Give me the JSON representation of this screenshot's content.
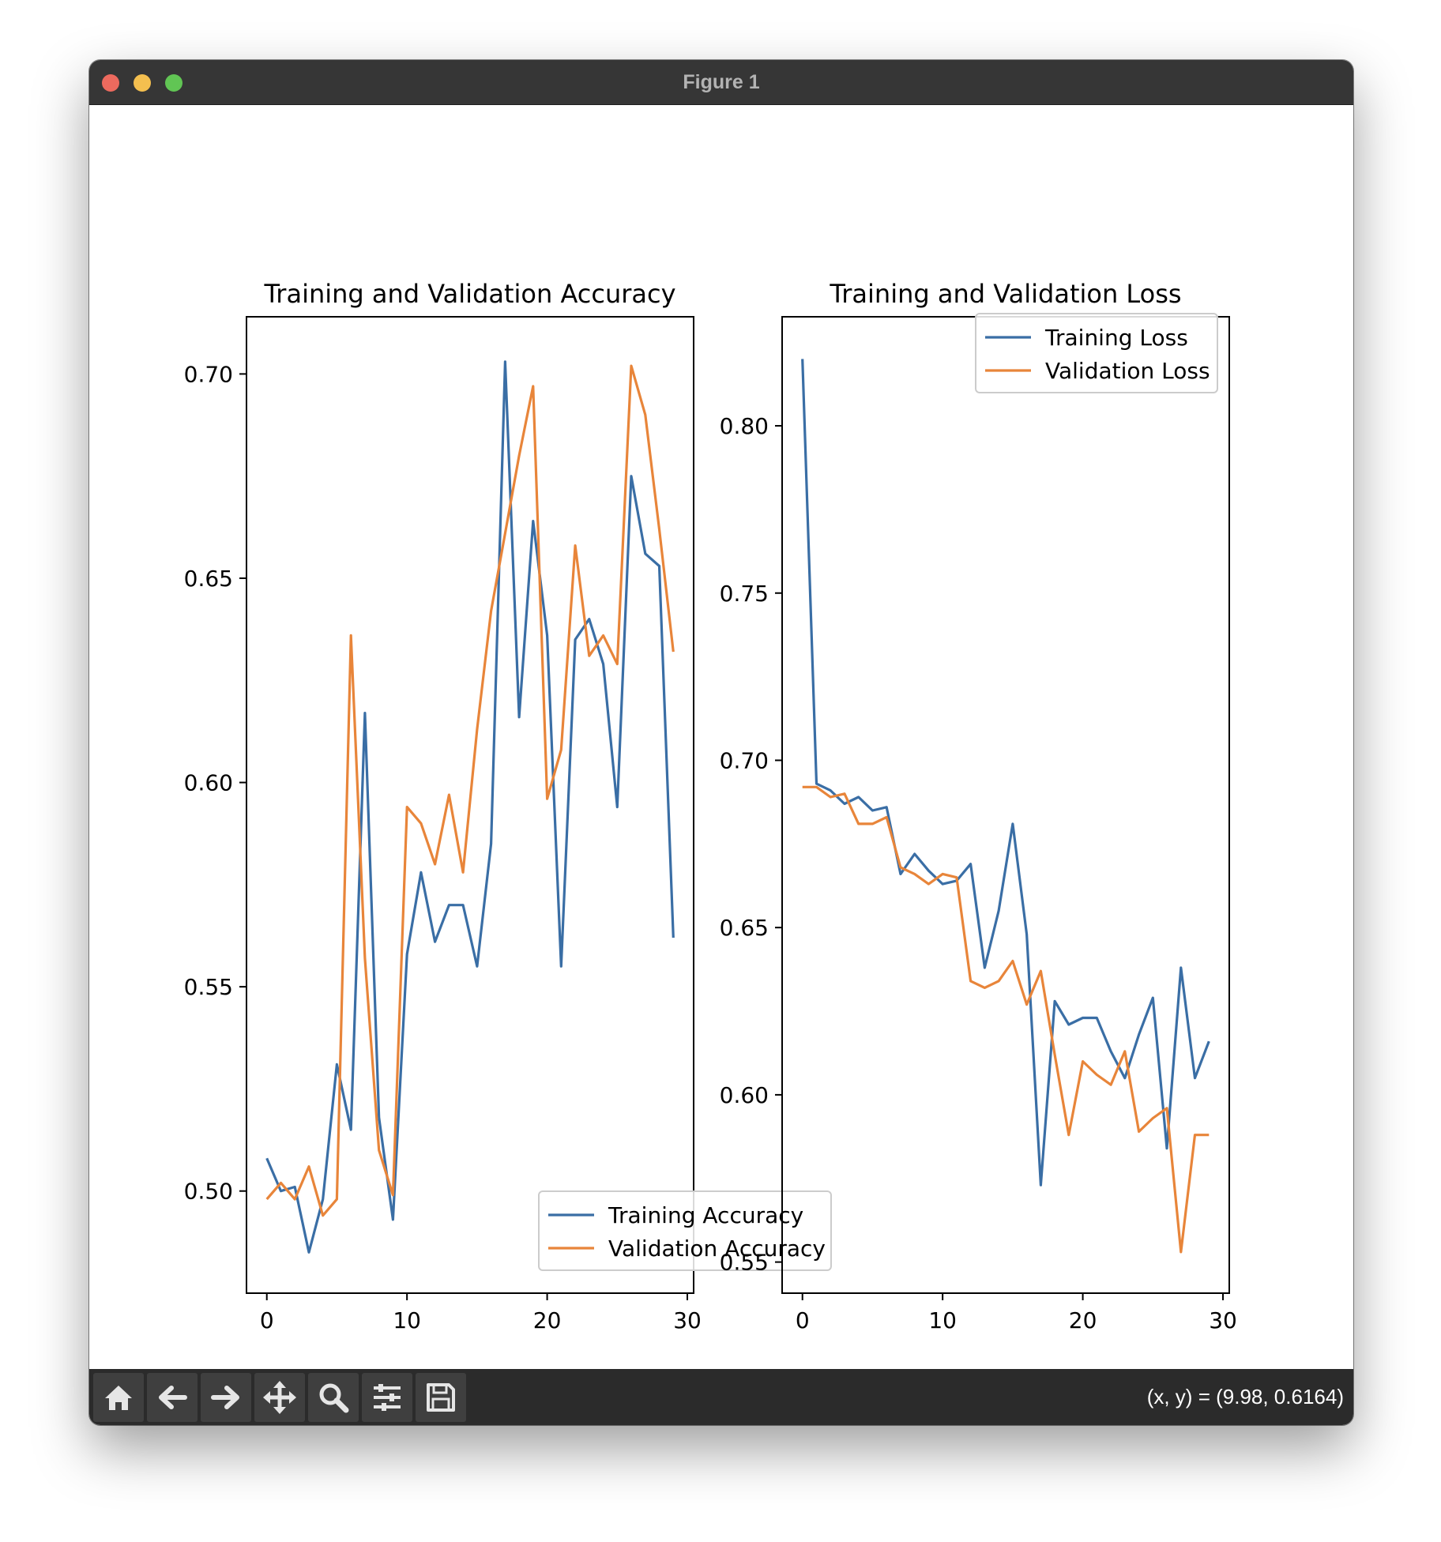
{
  "window": {
    "title": "Figure 1"
  },
  "toolbar": {
    "buttons": [
      {
        "name": "home",
        "icon": "home-icon"
      },
      {
        "name": "back",
        "icon": "arrow-left-icon"
      },
      {
        "name": "forward",
        "icon": "arrow-right-icon"
      },
      {
        "name": "pan",
        "icon": "move-icon"
      },
      {
        "name": "zoom",
        "icon": "magnifier-icon"
      },
      {
        "name": "configure-subplots",
        "icon": "sliders-icon"
      },
      {
        "name": "save",
        "icon": "floppy-disk-icon"
      }
    ],
    "coords": "(x, y) = (9.98, 0.6164)"
  },
  "colors": {
    "training": "#3a6ea5",
    "validation": "#e8853a"
  },
  "chart_data": [
    {
      "type": "line",
      "title": "Training and Validation Accuracy",
      "xlabel": "",
      "ylabel": "",
      "xlim": [
        -1.45,
        30.45
      ],
      "ylim": [
        0.475,
        0.714
      ],
      "xticks": [
        0,
        10,
        20,
        30
      ],
      "xtick_labels": [
        "0",
        "10",
        "20",
        "30"
      ],
      "yticks": [
        0.5,
        0.55,
        0.6,
        0.65,
        0.7
      ],
      "ytick_labels": [
        "0.50",
        "0.55",
        "0.60",
        "0.65",
        "0.70"
      ],
      "legend": "lower-right",
      "grid": false,
      "x": [
        0,
        1,
        2,
        3,
        4,
        5,
        6,
        7,
        8,
        9,
        10,
        11,
        12,
        13,
        14,
        15,
        16,
        17,
        18,
        19,
        20,
        21,
        22,
        23,
        24,
        25,
        26,
        27,
        28,
        29
      ],
      "series": [
        {
          "name": "Training Accuracy",
          "color": "#3a6ea5",
          "values": [
            0.508,
            0.5,
            0.501,
            0.485,
            0.498,
            0.531,
            0.515,
            0.617,
            0.518,
            0.493,
            0.558,
            0.578,
            0.561,
            0.57,
            0.57,
            0.555,
            0.585,
            0.703,
            0.616,
            0.664,
            0.636,
            0.555,
            0.635,
            0.64,
            0.629,
            0.594,
            0.675,
            0.656,
            0.653,
            0.562
          ]
        },
        {
          "name": "Validation Accuracy",
          "color": "#e8853a",
          "values": [
            0.498,
            0.502,
            0.498,
            0.506,
            0.494,
            0.498,
            0.636,
            0.557,
            0.51,
            0.499,
            0.594,
            0.59,
            0.58,
            0.597,
            0.578,
            0.613,
            0.642,
            0.661,
            0.68,
            0.697,
            0.596,
            0.608,
            0.658,
            0.631,
            0.636,
            0.629,
            0.702,
            0.69,
            0.662,
            0.632
          ]
        }
      ]
    },
    {
      "type": "line",
      "title": "Training and Validation Loss",
      "xlabel": "",
      "ylabel": "",
      "xlim": [
        -1.45,
        30.45
      ],
      "ylim": [
        0.5407,
        0.8326
      ],
      "xticks": [
        0,
        10,
        20,
        30
      ],
      "xtick_labels": [
        "0",
        "10",
        "20",
        "30"
      ],
      "yticks": [
        0.55,
        0.6,
        0.65,
        0.7,
        0.75,
        0.8
      ],
      "ytick_labels": [
        "0.55",
        "0.60",
        "0.65",
        "0.70",
        "0.75",
        "0.80"
      ],
      "legend": "upper-right",
      "grid": false,
      "x": [
        0,
        1,
        2,
        3,
        4,
        5,
        6,
        7,
        8,
        9,
        10,
        11,
        12,
        13,
        14,
        15,
        16,
        17,
        18,
        19,
        20,
        21,
        22,
        23,
        24,
        25,
        26,
        27,
        28,
        29
      ],
      "series": [
        {
          "name": "Training Loss",
          "color": "#3a6ea5",
          "values": [
            0.82,
            0.693,
            0.691,
            0.687,
            0.689,
            0.685,
            0.686,
            0.666,
            0.672,
            0.667,
            0.663,
            0.664,
            0.669,
            0.638,
            0.655,
            0.681,
            0.648,
            0.573,
            0.628,
            0.621,
            0.623,
            0.623,
            0.613,
            0.605,
            0.618,
            0.629,
            0.584,
            0.638,
            0.605,
            0.616
          ]
        },
        {
          "name": "Validation Loss",
          "color": "#e8853a",
          "values": [
            0.692,
            0.692,
            0.689,
            0.69,
            0.681,
            0.681,
            0.683,
            0.668,
            0.666,
            0.663,
            0.666,
            0.665,
            0.634,
            0.632,
            0.634,
            0.64,
            0.627,
            0.637,
            0.612,
            0.588,
            0.61,
            0.606,
            0.603,
            0.613,
            0.589,
            0.593,
            0.596,
            0.553,
            0.588,
            0.588
          ]
        }
      ]
    }
  ]
}
